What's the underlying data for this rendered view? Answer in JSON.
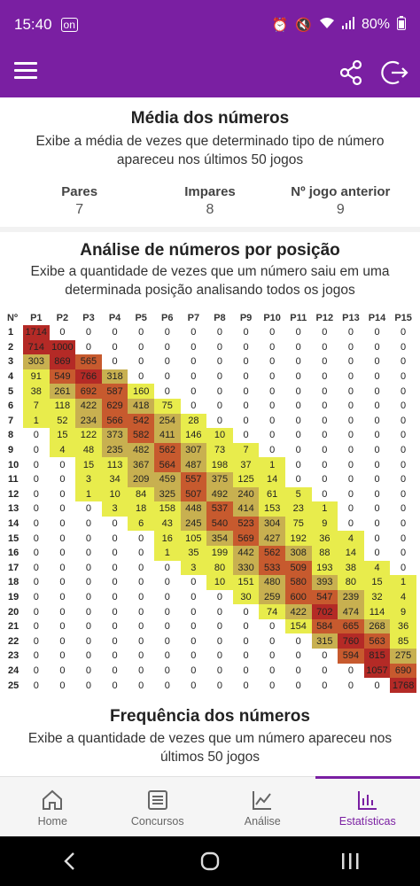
{
  "status_bar": {
    "time": "15:40",
    "left_icon": "on-icon",
    "battery": "80%"
  },
  "media": {
    "title": "Média dos números",
    "subtitle": "Exibe a média de vezes que determinado tipo de número apareceu nos últimos 50 jogos",
    "stats": [
      {
        "label": "Pares",
        "value": "7"
      },
      {
        "label": "Impares",
        "value": "8"
      },
      {
        "label": "Nº jogo anterior",
        "value": "9"
      }
    ]
  },
  "analise": {
    "title": "Análise de números por posição",
    "subtitle": "Exibe a quantidade de vezes que um número saiu em uma determinada posição analisando todos os jogos",
    "row_header": "Nº",
    "columns": [
      "P1",
      "P2",
      "P3",
      "P4",
      "P5",
      "P6",
      "P7",
      "P8",
      "P9",
      "P10",
      "P11",
      "P12",
      "P13",
      "P14",
      "P15"
    ],
    "rows": [
      {
        "n": "1",
        "v": [
          1714,
          0,
          0,
          0,
          0,
          0,
          0,
          0,
          0,
          0,
          0,
          0,
          0,
          0,
          0
        ]
      },
      {
        "n": "2",
        "v": [
          714,
          1000,
          0,
          0,
          0,
          0,
          0,
          0,
          0,
          0,
          0,
          0,
          0,
          0,
          0
        ]
      },
      {
        "n": "3",
        "v": [
          303,
          869,
          565,
          0,
          0,
          0,
          0,
          0,
          0,
          0,
          0,
          0,
          0,
          0,
          0
        ]
      },
      {
        "n": "4",
        "v": [
          91,
          549,
          766,
          318,
          0,
          0,
          0,
          0,
          0,
          0,
          0,
          0,
          0,
          0,
          0
        ]
      },
      {
        "n": "5",
        "v": [
          38,
          261,
          692,
          587,
          160,
          0,
          0,
          0,
          0,
          0,
          0,
          0,
          0,
          0,
          0
        ]
      },
      {
        "n": "6",
        "v": [
          7,
          118,
          422,
          629,
          418,
          75,
          0,
          0,
          0,
          0,
          0,
          0,
          0,
          0,
          0
        ]
      },
      {
        "n": "7",
        "v": [
          1,
          52,
          234,
          566,
          542,
          254,
          28,
          0,
          0,
          0,
          0,
          0,
          0,
          0,
          0
        ]
      },
      {
        "n": "8",
        "v": [
          0,
          15,
          122,
          373,
          582,
          411,
          146,
          10,
          0,
          0,
          0,
          0,
          0,
          0,
          0
        ]
      },
      {
        "n": "9",
        "v": [
          0,
          4,
          48,
          235,
          482,
          562,
          307,
          73,
          7,
          0,
          0,
          0,
          0,
          0,
          0
        ]
      },
      {
        "n": "10",
        "v": [
          0,
          0,
          15,
          113,
          367,
          564,
          487,
          198,
          37,
          1,
          0,
          0,
          0,
          0,
          0
        ]
      },
      {
        "n": "11",
        "v": [
          0,
          0,
          3,
          34,
          209,
          459,
          557,
          375,
          125,
          14,
          0,
          0,
          0,
          0,
          0
        ]
      },
      {
        "n": "12",
        "v": [
          0,
          0,
          1,
          10,
          84,
          325,
          507,
          492,
          240,
          61,
          5,
          0,
          0,
          0,
          0
        ]
      },
      {
        "n": "13",
        "v": [
          0,
          0,
          0,
          3,
          18,
          158,
          448,
          537,
          414,
          153,
          23,
          1,
          0,
          0,
          0
        ]
      },
      {
        "n": "14",
        "v": [
          0,
          0,
          0,
          0,
          6,
          43,
          245,
          540,
          523,
          304,
          75,
          9,
          0,
          0,
          0
        ]
      },
      {
        "n": "15",
        "v": [
          0,
          0,
          0,
          0,
          0,
          16,
          105,
          354,
          569,
          427,
          192,
          36,
          4,
          0,
          0
        ]
      },
      {
        "n": "16",
        "v": [
          0,
          0,
          0,
          0,
          0,
          1,
          35,
          199,
          442,
          562,
          308,
          88,
          14,
          0,
          0
        ]
      },
      {
        "n": "17",
        "v": [
          0,
          0,
          0,
          0,
          0,
          0,
          3,
          80,
          330,
          533,
          509,
          193,
          38,
          4,
          0
        ]
      },
      {
        "n": "18",
        "v": [
          0,
          0,
          0,
          0,
          0,
          0,
          0,
          10,
          151,
          480,
          580,
          393,
          80,
          15,
          1
        ]
      },
      {
        "n": "19",
        "v": [
          0,
          0,
          0,
          0,
          0,
          0,
          0,
          0,
          30,
          259,
          600,
          547,
          239,
          32,
          4
        ]
      },
      {
        "n": "20",
        "v": [
          0,
          0,
          0,
          0,
          0,
          0,
          0,
          0,
          0,
          74,
          422,
          702,
          474,
          114,
          9
        ]
      },
      {
        "n": "21",
        "v": [
          0,
          0,
          0,
          0,
          0,
          0,
          0,
          0,
          0,
          0,
          154,
          584,
          665,
          268,
          36
        ]
      },
      {
        "n": "22",
        "v": [
          0,
          0,
          0,
          0,
          0,
          0,
          0,
          0,
          0,
          0,
          0,
          315,
          760,
          563,
          85
        ]
      },
      {
        "n": "23",
        "v": [
          0,
          0,
          0,
          0,
          0,
          0,
          0,
          0,
          0,
          0,
          0,
          0,
          594,
          815,
          275
        ]
      },
      {
        "n": "24",
        "v": [
          0,
          0,
          0,
          0,
          0,
          0,
          0,
          0,
          0,
          0,
          0,
          0,
          0,
          1057,
          690
        ]
      },
      {
        "n": "25",
        "v": [
          0,
          0,
          0,
          0,
          0,
          0,
          0,
          0,
          0,
          0,
          0,
          0,
          0,
          0,
          1768
        ]
      }
    ],
    "colors": {
      "low": "#e8ec4c",
      "mid": "#c8b050",
      "high": "#c75a2e",
      "max": "#b42a26"
    }
  },
  "frequencia": {
    "title": "Frequência dos números",
    "subtitle": "Exibe a quantidade de vezes que um número apareceu nos últimos 50 jogos"
  },
  "bottom_nav": [
    {
      "label": "Home",
      "icon": "home-icon"
    },
    {
      "label": "Concursos",
      "icon": "list-icon"
    },
    {
      "label": "Análise",
      "icon": "chart-line-icon"
    },
    {
      "label": "Estatísticas",
      "icon": "bar-chart-icon",
      "active": true
    }
  ],
  "accent": "#7a1fa2"
}
